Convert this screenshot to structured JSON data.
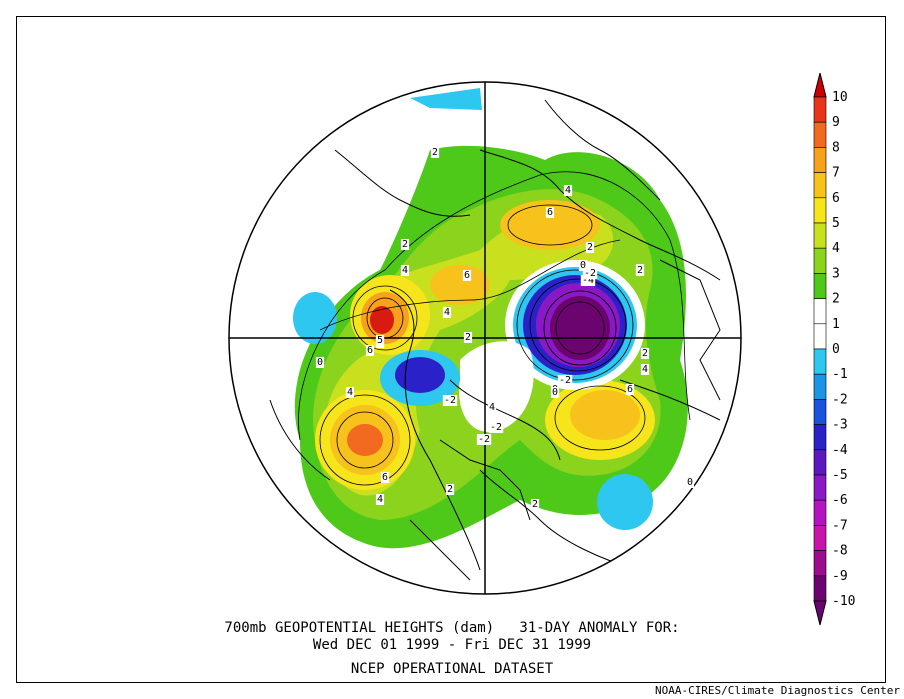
{
  "title": {
    "line1": "700mb GEOPOTENTIAL HEIGHTS (dam)   31-DAY ANOMALY FOR:",
    "line2": "Wed DEC 01 1999 - Fri DEC 31 1999",
    "line3": "NCEP OPERATIONAL DATASET"
  },
  "credit": "NOAA-CIRES/Climate Diagnostics Center",
  "legend": {
    "levels": [
      {
        "label": "10",
        "color": "#d10000"
      },
      {
        "label": "9",
        "color": "#e8351a"
      },
      {
        "label": "8",
        "color": "#f26a1f"
      },
      {
        "label": "7",
        "color": "#f7a11c"
      },
      {
        "label": "6",
        "color": "#f7c21b"
      },
      {
        "label": "5",
        "color": "#f7e51c"
      },
      {
        "label": "4",
        "color": "#c9e01e"
      },
      {
        "label": "3",
        "color": "#8bd31c"
      },
      {
        "label": "2",
        "color": "#4ec91a"
      },
      {
        "label": "1",
        "color": "#ffffff"
      },
      {
        "label": "0",
        "color": "#ffffff"
      },
      {
        "label": "-1",
        "color": "#2ec7f0"
      },
      {
        "label": "-2",
        "color": "#1a96e6"
      },
      {
        "label": "-3",
        "color": "#1a54dc"
      },
      {
        "label": "-4",
        "color": "#2a22c8"
      },
      {
        "label": "-5",
        "color": "#5c18c0"
      },
      {
        "label": "-6",
        "color": "#8a18c4"
      },
      {
        "label": "-7",
        "color": "#b414c0"
      },
      {
        "label": "-8",
        "color": "#c814a8"
      },
      {
        "label": "-9",
        "color": "#9c0c8c"
      },
      {
        "label": "-10",
        "color": "#6c0470"
      }
    ],
    "top_color": "#d10000",
    "bottom_color": "#6c0470"
  },
  "anomaly_centers": [
    {
      "label": "10",
      "type": "positive",
      "color": "#d81a10"
    },
    {
      "label": "8",
      "type": "positive",
      "color": "#f26a1f"
    },
    {
      "label": "6",
      "type": "positive",
      "color": "#f7c21b"
    },
    {
      "label": "-10",
      "type": "negative",
      "color": "#6c0470"
    },
    {
      "label": "-5",
      "type": "negative",
      "color": "#2a22c8"
    },
    {
      "label": "-1",
      "type": "negative",
      "color": "#2ec7f0"
    }
  ],
  "contour_labels": [
    "2",
    "2",
    "4",
    "6",
    "4",
    "6",
    "2",
    "4",
    "2",
    "6",
    "4",
    "5",
    "6",
    "2",
    "0",
    "-4",
    "-2",
    "0",
    "2",
    "-2",
    "0",
    "-2",
    "-2",
    "-2",
    "0",
    "4",
    "6",
    "2",
    "4",
    "6",
    "4",
    "2",
    "2",
    "0"
  ]
}
